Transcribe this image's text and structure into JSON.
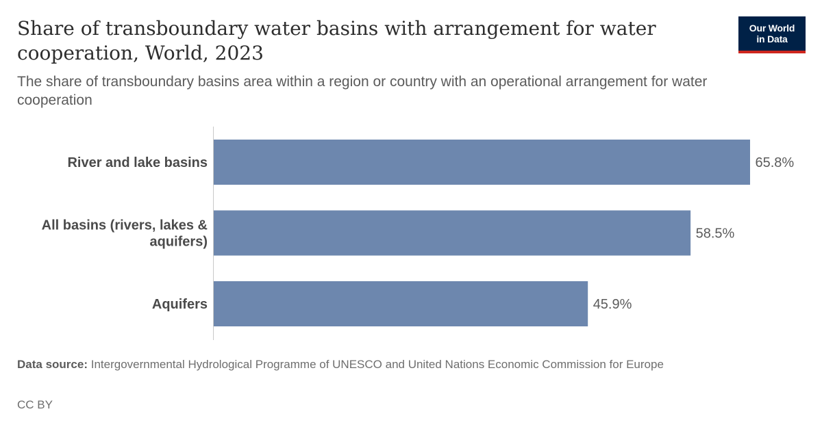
{
  "header": {
    "title": "Share of transboundary water basins with arrangement for water cooperation, World, 2023",
    "subtitle": "The share of transboundary basins area within a region or country with an operational arrangement for water cooperation"
  },
  "logo": {
    "line1": "Our World",
    "line2": "in Data",
    "bg_color": "#002147",
    "accent_color": "#ce261e"
  },
  "chart_data": {
    "type": "bar",
    "orientation": "horizontal",
    "categories": [
      [
        "River and lake basins"
      ],
      [
        "All basins (rivers, lakes &",
        "aquifers)"
      ],
      [
        "Aquifers"
      ]
    ],
    "values": [
      65.8,
      58.5,
      45.9
    ],
    "value_labels": [
      "65.8%",
      "58.5%",
      "45.9%"
    ],
    "unit": "%",
    "xlim": [
      0,
      65.8
    ],
    "bar_color": "#6d87ae",
    "grid": false,
    "legend": "none"
  },
  "footer": {
    "source_label": "Data source:",
    "source_text": "Intergovernmental Hydrological Programme of UNESCO and United Nations Economic Commission for Europe",
    "license": "CC BY"
  }
}
